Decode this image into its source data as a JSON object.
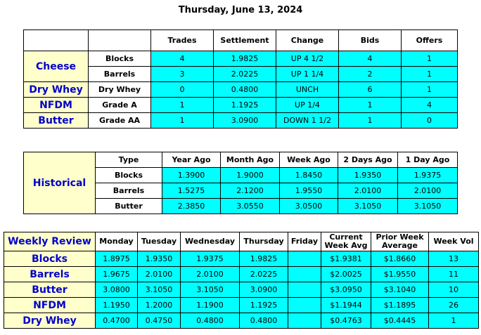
{
  "title": "Thursday, June 13, 2024",
  "daily": {
    "columns": [
      "Trades",
      "Settlement",
      "Change",
      "Bids",
      "Offers"
    ],
    "groups": [
      {
        "name": "Cheese",
        "rows": [
          {
            "product": "Blocks",
            "cells": [
              "4",
              "1.9825",
              "UP 4 1/2",
              "4",
              "1"
            ]
          },
          {
            "product": "Barrels",
            "cells": [
              "3",
              "2.0225",
              "UP 1 1/4",
              "2",
              "1"
            ]
          }
        ]
      },
      {
        "name": "Dry Whey",
        "rows": [
          {
            "product": "Dry Whey",
            "cells": [
              "0",
              "0.4800",
              "UNCH",
              "6",
              "1"
            ]
          }
        ]
      },
      {
        "name": "NFDM",
        "rows": [
          {
            "product": "Grade A",
            "cells": [
              "1",
              "1.1925",
              "UP 1/4",
              "1",
              "4"
            ]
          }
        ]
      },
      {
        "name": "Butter",
        "rows": [
          {
            "product": "Grade AA",
            "cells": [
              "1",
              "3.0900",
              "DOWN 1 1/2",
              "1",
              "0"
            ]
          }
        ]
      }
    ]
  },
  "historical": {
    "label": "Historical",
    "columns": [
      "Type",
      "Year Ago",
      "Month Ago",
      "Week Ago",
      "2 Days Ago",
      "1 Day Ago"
    ],
    "rows": [
      [
        "Blocks",
        "1.3900",
        "1.9000",
        "1.8450",
        "1.9350",
        "1.9375"
      ],
      [
        "Barrels",
        "1.5275",
        "2.1200",
        "1.9550",
        "2.0100",
        "2.0100"
      ],
      [
        "Butter",
        "2.3850",
        "3.0550",
        "3.0500",
        "3.1050",
        "3.1050"
      ]
    ]
  },
  "weekly": {
    "label": "Weekly Review",
    "columns": [
      "Monday",
      "Tuesday",
      "Wednesday",
      "Thursday",
      "Friday",
      "Current Week Avg",
      "Prior Week Average",
      "Week Vol"
    ],
    "rows": [
      {
        "name": "Blocks",
        "days": [
          "1.8975",
          "1.9350",
          "1.9375",
          "1.9825"
        ],
        "stats": [
          "$1.9381",
          "$1.8660",
          "13"
        ]
      },
      {
        "name": "Barrels",
        "days": [
          "1.9675",
          "2.0100",
          "2.0100",
          "2.0225"
        ],
        "stats": [
          "$2.0025",
          "$1.9550",
          "11"
        ]
      },
      {
        "name": "Butter",
        "days": [
          "3.0800",
          "3.1050",
          "3.1050",
          "3.0900"
        ],
        "stats": [
          "$3.0950",
          "$3.1040",
          "10"
        ]
      },
      {
        "name": "NFDM",
        "days": [
          "1.1950",
          "1.2000",
          "1.1900",
          "1.1925"
        ],
        "stats": [
          "$1.1944",
          "$1.1895",
          "26"
        ]
      },
      {
        "name": "Dry Whey",
        "days": [
          "0.4700",
          "0.4750",
          "0.4800",
          "0.4800"
        ],
        "stats": [
          "$0.4763",
          "$0.4445",
          "1"
        ]
      }
    ]
  }
}
